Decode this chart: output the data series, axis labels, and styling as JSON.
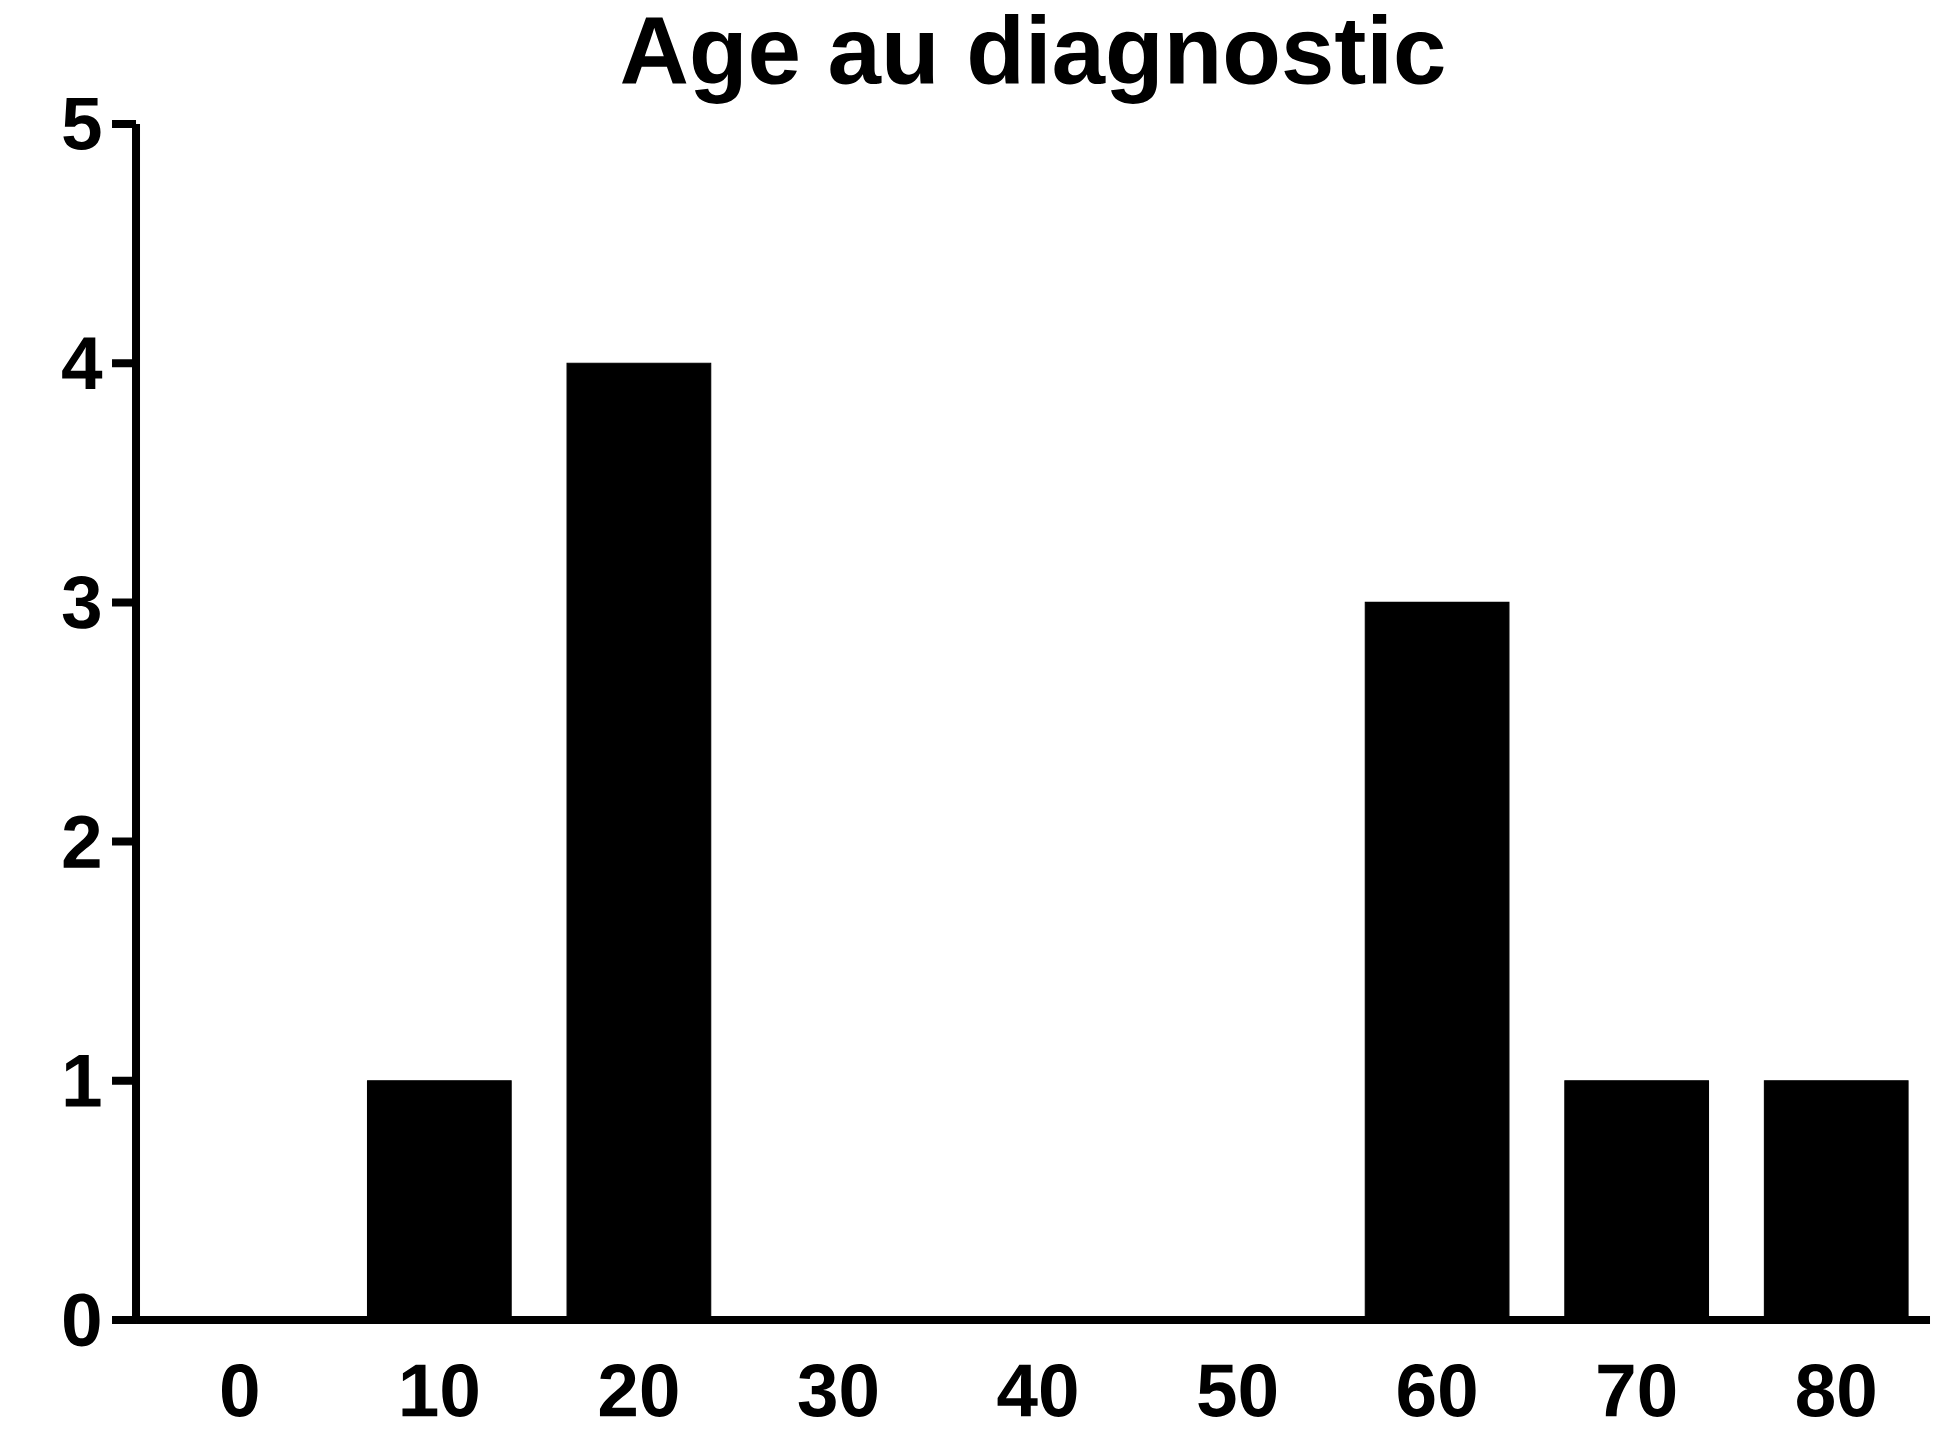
{
  "chart_data": {
    "type": "bar",
    "title": "Age au diagnostic",
    "categories": [
      "0",
      "10",
      "20",
      "30",
      "40",
      "50",
      "60",
      "70",
      "80"
    ],
    "values": [
      0,
      1,
      4,
      0,
      0,
      0,
      3,
      1,
      1
    ],
    "color": "#000000",
    "ylim": [
      0,
      5
    ],
    "yticks": [
      0,
      1,
      2,
      3,
      4,
      5
    ],
    "grid": false
  }
}
